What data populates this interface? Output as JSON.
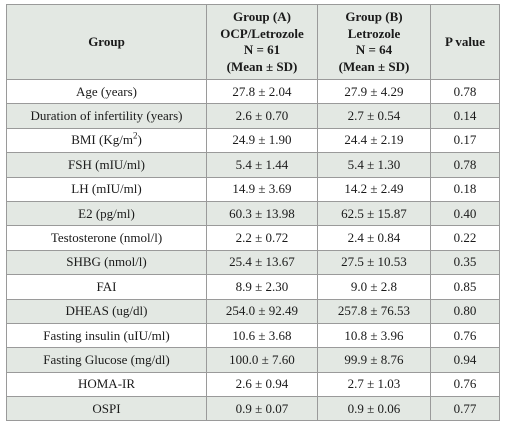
{
  "table": {
    "headers": {
      "group": "Group",
      "group_a": [
        "Group (A)",
        "OCP/Letrozole",
        "N = 61",
        "(Mean ± SD)"
      ],
      "group_b": [
        "Group (B)",
        "Letrozole",
        "N = 64",
        "(Mean ± SD)"
      ],
      "p_value": "P value"
    },
    "rows": [
      {
        "group": "Age (years)",
        "a": "27.8 ± 2.04",
        "b": "27.9 ± 4.29",
        "p": "0.78"
      },
      {
        "group": "Duration of infertility (years)",
        "a": "2.6 ± 0.70",
        "b": "2.7 ± 0.54",
        "p": "0.14"
      },
      {
        "group": "BMI (Kg/m",
        "group_sup": "2",
        "group_tail": ")",
        "a": "24.9 ± 1.90",
        "b": "24.4 ± 2.19",
        "p": "0.17"
      },
      {
        "group": "FSH (mIU/ml)",
        "a": "5.4 ± 1.44",
        "b": "5.4 ± 1.30",
        "p": "0.78"
      },
      {
        "group": "LH (mIU/ml)",
        "a": "14.9 ± 3.69",
        "b": "14.2 ± 2.49",
        "p": "0.18"
      },
      {
        "group": "E2 (pg/ml)",
        "a": "60.3 ± 13.98",
        "b": "62.5 ± 15.87",
        "p": "0.40"
      },
      {
        "group": "Testosterone (nmol/l)",
        "a": "2.2 ± 0.72",
        "b": "2.4 ± 0.84",
        "p": "0.22"
      },
      {
        "group": "SHBG (nmol/l)",
        "a": "25.4 ± 13.67",
        "b": "27.5 ± 10.53",
        "p": "0.35"
      },
      {
        "group": "FAI",
        "a": "8.9 ± 2.30",
        "b": "9.0 ± 2.8",
        "p": "0.85"
      },
      {
        "group": "DHEAS (ug/dl)",
        "a": "254.0 ± 92.49",
        "b": "257.8 ± 76.53",
        "p": "0.80"
      },
      {
        "group": "Fasting insulin (uIU/ml)",
        "a": "10.6 ± 3.68",
        "b": "10.8 ± 3.96",
        "p": "0.76"
      },
      {
        "group": "Fasting Glucose (mg/dl)",
        "a": "100.0 ± 7.60",
        "b": "99.9 ± 8.76",
        "p": "0.94"
      },
      {
        "group": "HOMA-IR",
        "a": "2.6 ± 0.94",
        "b": "2.7 ± 1.03",
        "p": "0.76"
      },
      {
        "group": "OSPI",
        "a": "0.9 ± 0.07",
        "b": "0.9 ± 0.06",
        "p": "0.77"
      }
    ]
  },
  "colors": {
    "band": "#e3e8e3",
    "border": "#9a9a9a",
    "text": "#1a1a1a"
  }
}
